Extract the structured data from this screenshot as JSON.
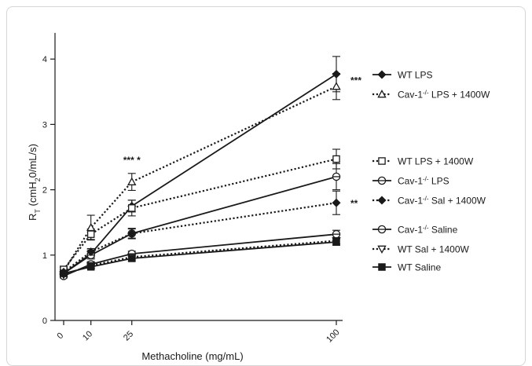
{
  "chart_data": {
    "type": "line",
    "xlabel": "Methacholine (mg/mL)",
    "ylabel": {
      "base": "R",
      "sub": "T",
      "rest": " (cmH",
      "sub2": "2",
      "tail": "0/mL/s)"
    },
    "xlim": [
      0,
      100
    ],
    "ylim": [
      0,
      4.4
    ],
    "x_ticks": [
      0,
      10,
      25,
      100
    ],
    "x_tick_labels": [
      "0",
      "10",
      "25",
      "100"
    ],
    "y_ticks": [
      0,
      1,
      2,
      3,
      4
    ],
    "x": [
      0,
      10,
      25,
      100
    ],
    "grid": false,
    "legend_position": "right",
    "series": [
      {
        "name": "WT LPS",
        "values": [
          0.72,
          1.02,
          1.75,
          3.77
        ],
        "errors": [
          0.05,
          0.06,
          0.09,
          0.27
        ],
        "line": "solid",
        "marker": "diamond",
        "filled": true
      },
      {
        "name": "Cav-1-/- LPS + 1400W",
        "name_parts": [
          "Cav-1",
          "-/-",
          " LPS + 1400W"
        ],
        "values": [
          0.75,
          1.42,
          2.12,
          3.58
        ],
        "errors": [
          0.06,
          0.19,
          0.13,
          0.2
        ],
        "line": "dotted",
        "marker": "triangle-up",
        "filled": false
      },
      {
        "name": "WT LPS + 1400W",
        "values": [
          0.78,
          1.32,
          1.72,
          2.47
        ],
        "errors": [
          0.05,
          0.08,
          0.12,
          0.15
        ],
        "line": "dotted",
        "marker": "square",
        "filled": false
      },
      {
        "name": "Cav-1-/- LPS",
        "name_parts": [
          "Cav-1",
          "-/-",
          " LPS"
        ],
        "values": [
          0.72,
          1.0,
          1.33,
          2.2
        ],
        "errors": [
          0.05,
          0.06,
          0.08,
          0.2
        ],
        "line": "solid",
        "marker": "circle-bar",
        "filled": false
      },
      {
        "name": "Cav-1-/- Sal + 1400W",
        "name_parts": [
          "Cav-1",
          "-/-",
          " Sal + 1400W"
        ],
        "values": [
          0.74,
          1.05,
          1.33,
          1.8
        ],
        "errors": [
          0.04,
          0.05,
          0.07,
          0.18
        ],
        "line": "dotted",
        "marker": "diamond",
        "filled": true
      },
      {
        "name": "Cav-1-/- Saline",
        "name_parts": [
          "Cav-1",
          "-/-",
          " Saline"
        ],
        "values": [
          0.68,
          0.86,
          1.02,
          1.32
        ],
        "errors": [
          0.03,
          0.04,
          0.04,
          0.06
        ],
        "line": "solid",
        "marker": "circle-bar",
        "filled": false
      },
      {
        "name": "WT Sal + 1400W",
        "values": [
          0.7,
          0.84,
          0.97,
          1.22
        ],
        "errors": [
          0.03,
          0.04,
          0.04,
          0.05
        ],
        "line": "dotted",
        "marker": "triangle-down",
        "filled": false
      },
      {
        "name": "WT Saline",
        "values": [
          0.72,
          0.82,
          0.95,
          1.2
        ],
        "errors": [
          0.03,
          0.03,
          0.04,
          0.05
        ],
        "line": "solid",
        "marker": "square",
        "filled": true
      }
    ],
    "annotations": [
      {
        "text": "*** *",
        "x": 25,
        "y": 2.45
      },
      {
        "text": "***",
        "x": 100,
        "y": 3.67
      },
      {
        "text": "**",
        "x": 100,
        "y": 1.79
      }
    ],
    "colors": {
      "ink": "#1a1a1a",
      "frame": "#d6d6d6",
      "background": "#ffffff"
    }
  }
}
